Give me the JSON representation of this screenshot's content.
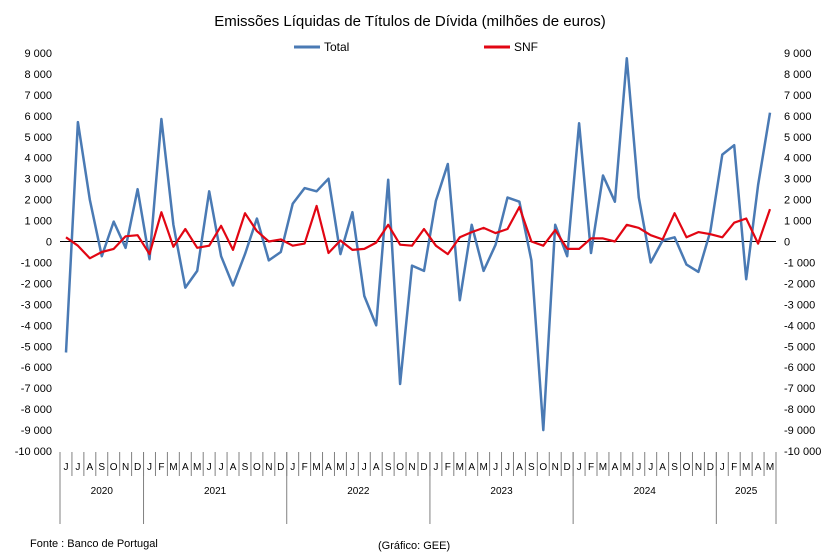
{
  "chart_data": {
    "type": "line",
    "title": "Emissões Líquidas de Títulos de Dívida (milhões de euros)",
    "ylim": [
      -10000,
      9000
    ],
    "yticks": [
      9000,
      8000,
      7000,
      6000,
      5000,
      4000,
      3000,
      2000,
      1000,
      0,
      -1000,
      -2000,
      -3000,
      -4000,
      -5000,
      -6000,
      -7000,
      -8000,
      -9000,
      -10000
    ],
    "ytick_labels": [
      "9 000",
      "8 000",
      "7 000",
      "6 000",
      "5 000",
      "4 000",
      "3 000",
      "2 000",
      "1 000",
      "0",
      "-1 000",
      "-2 000",
      "-3 000",
      "-4 000",
      "-5 000",
      "-6 000",
      "-7 000",
      "-8 000",
      "-9 000",
      "-10 000"
    ],
    "month_labels": [
      "J",
      "J",
      "A",
      "S",
      "O",
      "N",
      "D",
      "J",
      "F",
      "M",
      "A",
      "M",
      "J",
      "J",
      "A",
      "S",
      "O",
      "N",
      "D",
      "J",
      "F",
      "M",
      "A",
      "M",
      "J",
      "J",
      "A",
      "S",
      "O",
      "N",
      "D",
      "J",
      "F",
      "M",
      "A",
      "M",
      "J",
      "J",
      "A",
      "S",
      "O",
      "N",
      "D",
      "J",
      "F",
      "M",
      "A",
      "M",
      "J",
      "J",
      "A",
      "S",
      "O",
      "N",
      "D",
      "J",
      "F",
      "M",
      "A",
      "M"
    ],
    "years": [
      {
        "label": "2020",
        "start": 0,
        "count": 7
      },
      {
        "label": "2021",
        "start": 7,
        "count": 12
      },
      {
        "label": "2022",
        "start": 19,
        "count": 12
      },
      {
        "label": "2023",
        "start": 31,
        "count": 12
      },
      {
        "label": "2024",
        "start": 43,
        "count": 12
      },
      {
        "label": "2025",
        "start": 55,
        "count": 5
      }
    ],
    "series": [
      {
        "name": "Total",
        "color": "#4a7ab4",
        "values": [
          -5300,
          5700,
          2000,
          -700,
          950,
          -300,
          2500,
          -850,
          5850,
          800,
          -2200,
          -1400,
          2400,
          -700,
          -2100,
          -600,
          1100,
          -900,
          -500,
          1800,
          2550,
          2400,
          3000,
          -600,
          1400,
          -2600,
          -4000,
          2950,
          -6800,
          -1150,
          -1400,
          1950,
          3700,
          -2800,
          800,
          -1400,
          -150,
          2100,
          1900,
          -900,
          -9000,
          800,
          -700,
          5650,
          -550,
          3150,
          1900,
          8750,
          2100,
          -1000,
          50,
          200,
          -1100,
          -1450,
          500,
          4150,
          4600,
          -1800,
          2700,
          6150
        ]
      },
      {
        "name": "SNF",
        "color": "#e20613",
        "values": [
          200,
          -200,
          -800,
          -500,
          -350,
          250,
          300,
          -600,
          1400,
          -250,
          600,
          -300,
          -200,
          750,
          -400,
          1350,
          500,
          0,
          100,
          -200,
          -100,
          1700,
          -550,
          50,
          -400,
          -350,
          -50,
          800,
          -150,
          -200,
          600,
          -200,
          -600,
          200,
          450,
          650,
          400,
          600,
          1650,
          0,
          -200,
          550,
          -350,
          -350,
          150,
          150,
          0,
          800,
          650,
          300,
          100,
          1350,
          200,
          450,
          350,
          200,
          900,
          1100,
          -100,
          1550
        ]
      }
    ]
  },
  "footer": {
    "source": "Fonte : Banco de Portugal",
    "credit": "(Gráfico: GEE)"
  }
}
